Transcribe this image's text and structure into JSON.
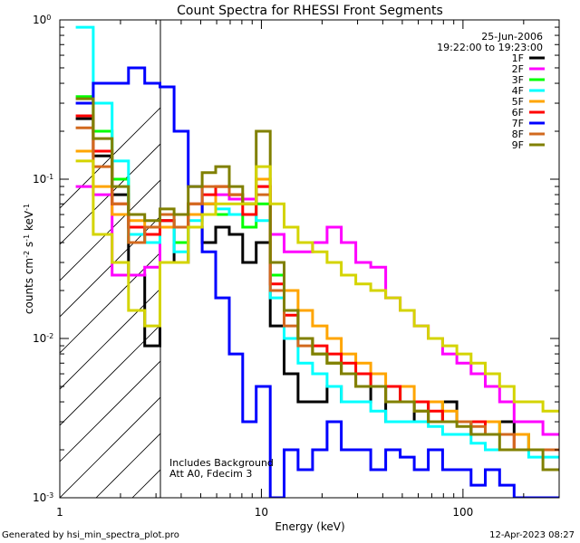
{
  "footer": {
    "generated": "Generated by hsi_min_spectra_plot.pro",
    "date": "12-Apr-2023 08:27"
  },
  "chart_data": {
    "type": "line",
    "title": "Count Spectra for RHESSI Front Segments",
    "xlabel": "Energy (keV)",
    "ylabel": "counts cm^-2 s^-1 keV^-1",
    "xscale": "log",
    "yscale": "log",
    "xlim": [
      1,
      300
    ],
    "ylim": [
      0.001,
      1
    ],
    "x_tick_labels": [
      "1",
      "10",
      "100"
    ],
    "y_tick_labels": [
      {
        "base": "10",
        "exp": "0"
      },
      {
        "base": "10",
        "exp": "-1"
      },
      {
        "base": "10",
        "exp": "-2"
      },
      {
        "base": "10",
        "exp": "-3"
      }
    ],
    "grid": false,
    "legend_position": "top-right",
    "date": "25-Jun-2006",
    "time_range": "19:22:00 to 19:23:00",
    "annotations": [
      "Includes Background",
      "Att A0, Fdecim 3"
    ],
    "shaded_region_keV": [
      1,
      3
    ],
    "energies": [
      1.3,
      1.65,
      2.0,
      2.4,
      2.9,
      3.4,
      4.0,
      4.7,
      5.5,
      6.4,
      7.5,
      8.7,
      10.2,
      12,
      14,
      16.5,
      19.5,
      23,
      27,
      32,
      38,
      45,
      53,
      62,
      73,
      86,
      101,
      119,
      140,
      165,
      195,
      230,
      270
    ],
    "series": [
      {
        "name": "1F",
        "color": "#000000",
        "values": [
          0.24,
          0.14,
          0.08,
          0.025,
          0.009,
          0.055,
          0.03,
          0.05,
          0.04,
          0.05,
          0.045,
          0.03,
          0.04,
          0.012,
          0.006,
          0.004,
          0.004,
          0.005,
          0.004,
          0.004,
          0.005,
          0.003,
          0.003,
          0.004,
          0.003,
          0.004,
          0.003,
          0.0025,
          0.003,
          0.003,
          0.0025,
          0.002,
          0.002
        ]
      },
      {
        "name": "2F",
        "color": "#ff00ff",
        "values": [
          0.09,
          0.08,
          0.025,
          0.025,
          0.028,
          0.05,
          0.04,
          0.06,
          0.07,
          0.08,
          0.075,
          0.075,
          0.09,
          0.045,
          0.035,
          0.035,
          0.04,
          0.05,
          0.04,
          0.03,
          0.028,
          0.018,
          0.015,
          0.012,
          0.01,
          0.008,
          0.007,
          0.006,
          0.005,
          0.004,
          0.003,
          0.003,
          0.0025
        ]
      },
      {
        "name": "3F",
        "color": "#00ff00",
        "values": [
          0.33,
          0.2,
          0.1,
          0.04,
          0.05,
          0.06,
          0.04,
          0.06,
          0.07,
          0.06,
          0.06,
          0.05,
          0.07,
          0.025,
          0.015,
          0.01,
          0.008,
          0.007,
          0.006,
          0.006,
          0.005,
          0.005,
          0.004,
          0.004,
          0.004,
          0.003,
          0.003,
          0.003,
          0.003,
          0.0025,
          0.0025,
          0.002,
          0.002
        ]
      },
      {
        "name": "4F",
        "color": "#00ffff",
        "values": [
          0.9,
          0.3,
          0.13,
          0.045,
          0.04,
          0.05,
          0.035,
          0.055,
          0.06,
          0.065,
          0.06,
          0.06,
          0.055,
          0.018,
          0.01,
          0.007,
          0.006,
          0.005,
          0.004,
          0.004,
          0.0035,
          0.003,
          0.003,
          0.003,
          0.0028,
          0.0025,
          0.0025,
          0.0022,
          0.002,
          0.002,
          0.002,
          0.0018,
          0.0018
        ]
      },
      {
        "name": "5F",
        "color": "#ffa500",
        "values": [
          0.15,
          0.09,
          0.06,
          0.055,
          0.05,
          0.05,
          0.05,
          0.06,
          0.07,
          0.09,
          0.08,
          0.07,
          0.1,
          0.03,
          0.02,
          0.015,
          0.012,
          0.01,
          0.008,
          0.007,
          0.006,
          0.005,
          0.005,
          0.004,
          0.004,
          0.0035,
          0.003,
          0.003,
          0.003,
          0.0025,
          0.0025,
          0.002,
          0.002
        ]
      },
      {
        "name": "6F",
        "color": "#ff0000",
        "values": [
          0.25,
          0.15,
          0.07,
          0.05,
          0.045,
          0.055,
          0.05,
          0.07,
          0.08,
          0.09,
          0.08,
          0.06,
          0.09,
          0.022,
          0.014,
          0.01,
          0.009,
          0.008,
          0.007,
          0.006,
          0.005,
          0.005,
          0.004,
          0.004,
          0.0035,
          0.003,
          0.003,
          0.003,
          0.0025,
          0.0025,
          0.002,
          0.002,
          0.002
        ]
      },
      {
        "name": "7F",
        "color": "#0000ff",
        "values": [
          0.3,
          0.4,
          0.4,
          0.5,
          0.4,
          0.38,
          0.2,
          0.09,
          0.035,
          0.018,
          0.008,
          0.003,
          0.005,
          0.001,
          0.002,
          0.0015,
          0.002,
          0.003,
          0.002,
          0.002,
          0.0015,
          0.002,
          0.0018,
          0.0015,
          0.002,
          0.0015,
          0.0015,
          0.0012,
          0.0015,
          0.0012,
          0.001,
          0.001,
          0.001
        ]
      },
      {
        "name": "8F",
        "color": "#d2691e",
        "values": [
          0.21,
          0.12,
          0.07,
          0.04,
          0.05,
          0.06,
          0.05,
          0.07,
          0.09,
          0.09,
          0.08,
          0.07,
          0.08,
          0.02,
          0.012,
          0.009,
          0.008,
          0.007,
          0.006,
          0.005,
          0.005,
          0.004,
          0.004,
          0.0035,
          0.003,
          0.003,
          0.003,
          0.0028,
          0.0025,
          0.0025,
          0.002,
          0.002,
          0.002
        ]
      },
      {
        "name": "9F",
        "color": "#808000",
        "values": [
          0.32,
          0.18,
          0.09,
          0.06,
          0.055,
          0.065,
          0.06,
          0.09,
          0.11,
          0.12,
          0.09,
          0.07,
          0.2,
          0.03,
          0.015,
          0.01,
          0.008,
          0.007,
          0.006,
          0.005,
          0.005,
          0.004,
          0.004,
          0.0035,
          0.003,
          0.003,
          0.0028,
          0.0025,
          0.0025,
          0.002,
          0.002,
          0.002,
          0.0015
        ]
      }
    ],
    "extra_series": [
      {
        "label": "yellow",
        "color": "#d4d400",
        "values": [
          0.13,
          0.045,
          0.03,
          0.015,
          0.012,
          0.03,
          0.03,
          0.05,
          0.06,
          0.07,
          0.07,
          0.07,
          0.12,
          0.07,
          0.05,
          0.04,
          0.035,
          0.03,
          0.025,
          0.022,
          0.02,
          0.018,
          0.015,
          0.012,
          0.01,
          0.009,
          0.008,
          0.007,
          0.006,
          0.005,
          0.004,
          0.004,
          0.0035
        ]
      }
    ]
  }
}
